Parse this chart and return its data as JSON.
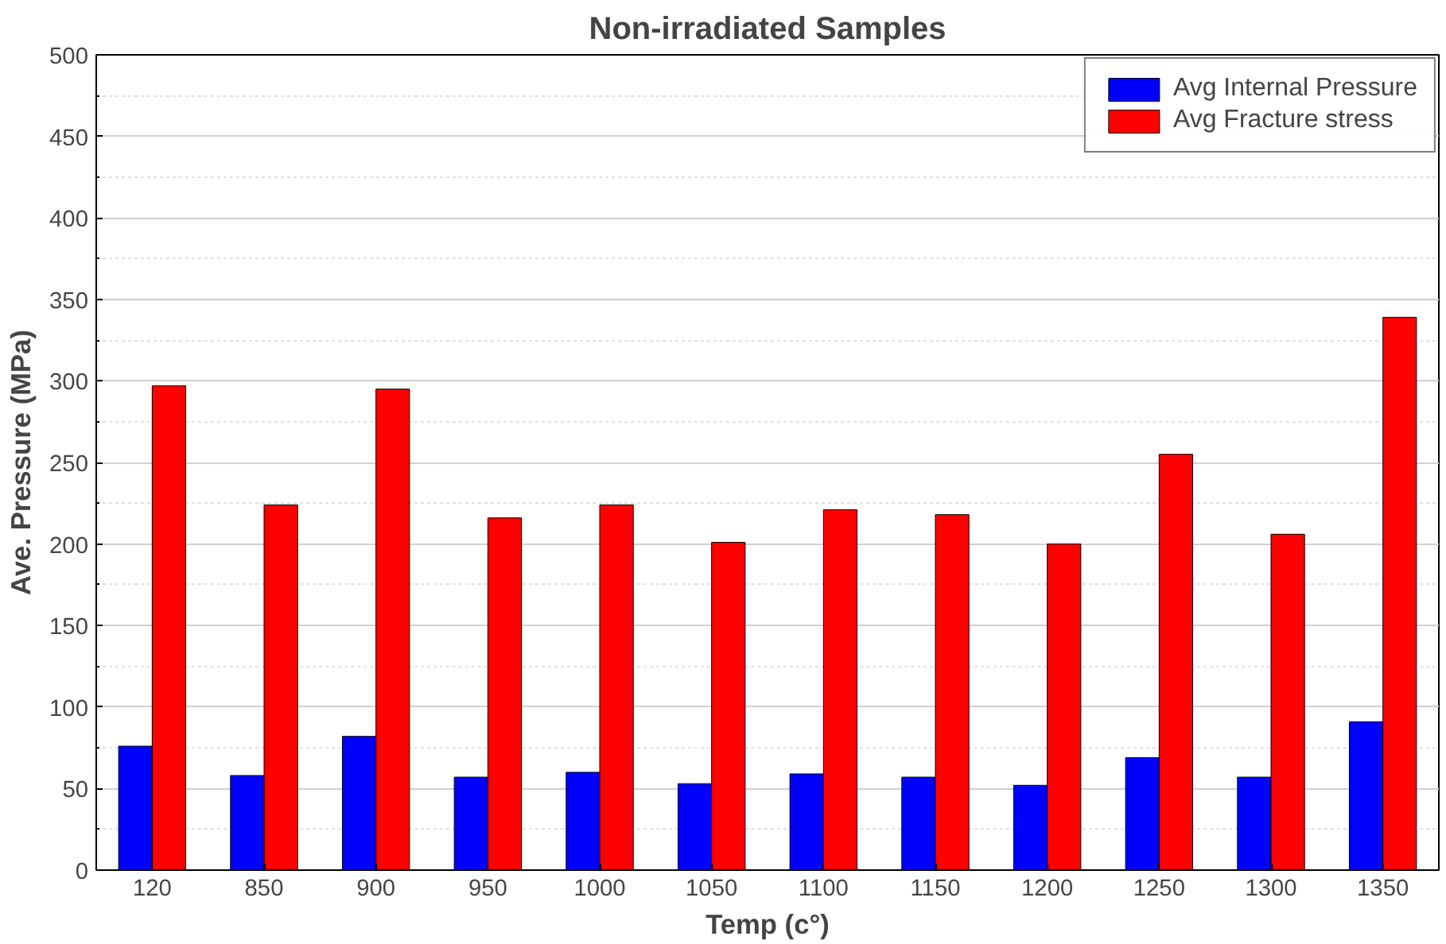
{
  "chart_data": {
    "type": "bar",
    "title": "Non-irradiated Samples",
    "xlabel": "Temp (c°)",
    "ylabel": "Ave. Pressure (MPa)",
    "categories": [
      "120",
      "850",
      "900",
      "950",
      "1000",
      "1050",
      "1100",
      "1150",
      "1200",
      "1250",
      "1300",
      "1350"
    ],
    "series": [
      {
        "name": "Avg Internal Pressure",
        "color": "#0000ff",
        "values": [
          76,
          58,
          82,
          57,
          60,
          53,
          59,
          57,
          52,
          69,
          57,
          91
        ]
      },
      {
        "name": "Avg Fracture stress",
        "color": "#ff0000",
        "values": [
          297,
          224,
          295,
          216,
          224,
          201,
          221,
          218,
          200,
          255,
          206,
          339
        ]
      }
    ],
    "ylim": [
      0,
      500
    ],
    "yticks": [
      0,
      50,
      100,
      150,
      200,
      250,
      300,
      350,
      400,
      450,
      500
    ],
    "grid": "y",
    "legend": "top right"
  }
}
